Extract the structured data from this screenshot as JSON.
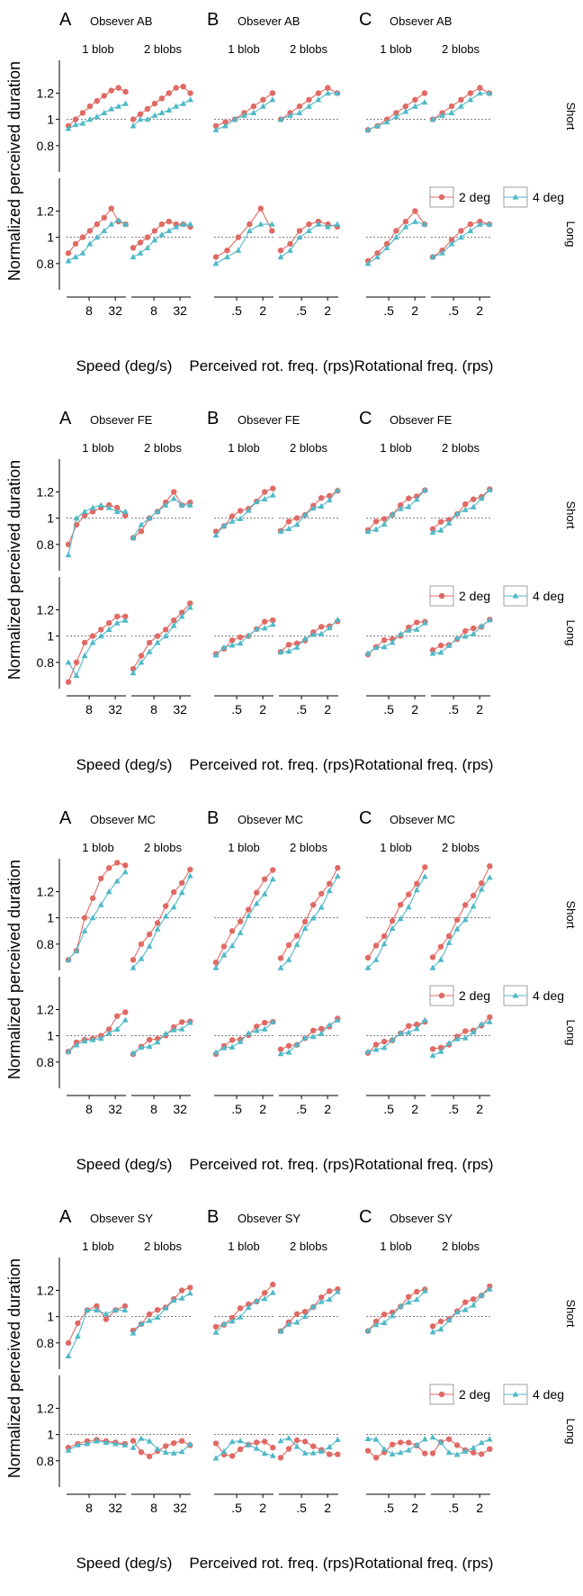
{
  "figure": {
    "ylabel": "Normalized perceived duration",
    "row_labels": [
      "Short",
      "Long"
    ],
    "sub_labels": [
      "1 blob",
      "2 blobs"
    ],
    "columns": [
      {
        "letter": "A",
        "xlabel": "Speed (deg/s)",
        "ticks": [
          "8",
          "32"
        ]
      },
      {
        "letter": "B",
        "xlabel": "Perceived rot. freq. (rps)",
        "ticks": [
          ".5",
          "2"
        ]
      },
      {
        "letter": "C",
        "xlabel": "Rotational freq. (rps)",
        "ticks": [
          ".5",
          "2"
        ]
      }
    ],
    "yticks": [
      "0.8",
      "1",
      "1.2"
    ],
    "legend": {
      "items": [
        "2 deg",
        "4 deg"
      ]
    },
    "colors": {
      "deg2": "#e06a64",
      "deg4": "#4fb9c8"
    }
  },
  "chart_data": [
    {
      "type": "line",
      "observer": "AB",
      "title": "Obsever AB",
      "x_speed": [
        2.8,
        4,
        5.7,
        8,
        11.3,
        16,
        22.6,
        32,
        45.3
      ],
      "x_rot": [
        0.18,
        0.25,
        0.35,
        0.5,
        0.71,
        1,
        1.41,
        2,
        2.83
      ],
      "series": [
        {
          "name": "2 deg",
          "column": "A",
          "row": "Short",
          "sub": "1 blob",
          "values": [
            0.95,
            1.0,
            1.05,
            1.1,
            1.14,
            1.18,
            1.22,
            1.24,
            1.21
          ]
        },
        {
          "name": "4 deg",
          "column": "A",
          "row": "Short",
          "sub": "1 blob",
          "values": [
            0.93,
            0.96,
            0.97,
            1.0,
            1.02,
            1.05,
            1.08,
            1.1,
            1.12
          ]
        },
        {
          "name": "2 deg",
          "column": "A",
          "row": "Short",
          "sub": "2 blobs",
          "values": [
            1.0,
            1.04,
            1.08,
            1.12,
            1.16,
            1.2,
            1.24,
            1.25,
            1.2
          ]
        },
        {
          "name": "4 deg",
          "column": "A",
          "row": "Short",
          "sub": "2 blobs",
          "values": [
            0.95,
            1.0,
            1.0,
            1.03,
            1.05,
            1.07,
            1.1,
            1.12,
            1.15
          ]
        },
        {
          "name": "2 deg",
          "column": "A",
          "row": "Long",
          "sub": "1 blob",
          "values": [
            0.88,
            0.95,
            1.0,
            1.05,
            1.1,
            1.15,
            1.22,
            1.12,
            1.1
          ]
        },
        {
          "name": "4 deg",
          "column": "A",
          "row": "Long",
          "sub": "1 blob",
          "values": [
            0.82,
            0.85,
            0.88,
            0.95,
            1.0,
            1.05,
            1.1,
            1.13,
            1.1
          ]
        },
        {
          "name": "2 deg",
          "column": "A",
          "row": "Long",
          "sub": "2 blobs",
          "values": [
            0.92,
            0.96,
            1.0,
            1.05,
            1.1,
            1.12,
            1.1,
            1.1,
            1.08
          ]
        },
        {
          "name": "4 deg",
          "column": "A",
          "row": "Long",
          "sub": "2 blobs",
          "values": [
            0.85,
            0.88,
            0.92,
            0.98,
            1.02,
            1.05,
            1.08,
            1.1,
            1.1
          ]
        },
        {
          "name": "2 deg",
          "column": "B",
          "row": "Short",
          "sub": "1 blob",
          "values": [
            0.95,
            0.98,
            1.0,
            1.05,
            1.1,
            1.15,
            1.2
          ]
        },
        {
          "name": "4 deg",
          "column": "B",
          "row": "Short",
          "sub": "1 blob",
          "values": [
            0.92,
            0.95,
            1.0,
            1.03,
            1.05,
            1.1,
            1.15
          ]
        },
        {
          "name": "2 deg",
          "column": "B",
          "row": "Short",
          "sub": "2 blobs",
          "values": [
            1.0,
            1.05,
            1.1,
            1.15,
            1.2,
            1.24,
            1.2
          ]
        },
        {
          "name": "4 deg",
          "column": "B",
          "row": "Short",
          "sub": "2 blobs",
          "values": [
            1.0,
            1.03,
            1.05,
            1.1,
            1.15,
            1.2,
            1.2
          ]
        },
        {
          "name": "2 deg",
          "column": "B",
          "row": "Long",
          "sub": "1 blob",
          "values": [
            0.85,
            0.9,
            1.0,
            1.1,
            1.22,
            1.05
          ]
        },
        {
          "name": "4 deg",
          "column": "B",
          "row": "Long",
          "sub": "1 blob",
          "values": [
            0.8,
            0.85,
            0.9,
            1.05,
            1.1,
            1.1
          ]
        },
        {
          "name": "2 deg",
          "column": "B",
          "row": "Long",
          "sub": "2 blobs",
          "values": [
            0.9,
            0.95,
            1.05,
            1.1,
            1.12,
            1.1,
            1.08
          ]
        },
        {
          "name": "4 deg",
          "column": "B",
          "row": "Long",
          "sub": "2 blobs",
          "values": [
            0.85,
            0.9,
            1.0,
            1.05,
            1.1,
            1.08,
            1.1
          ]
        },
        {
          "name": "2 deg",
          "column": "C",
          "row": "Short",
          "sub": "1 blob",
          "values": [
            0.92,
            0.95,
            1.0,
            1.05,
            1.1,
            1.15,
            1.2
          ]
        },
        {
          "name": "4 deg",
          "column": "C",
          "row": "Short",
          "sub": "1 blob",
          "values": [
            0.92,
            0.95,
            0.98,
            1.02,
            1.06,
            1.1,
            1.13
          ]
        },
        {
          "name": "2 deg",
          "column": "C",
          "row": "Short",
          "sub": "2 blobs",
          "values": [
            1.0,
            1.05,
            1.1,
            1.15,
            1.2,
            1.24,
            1.2
          ]
        },
        {
          "name": "4 deg",
          "column": "C",
          "row": "Short",
          "sub": "2 blobs",
          "values": [
            1.0,
            1.03,
            1.05,
            1.1,
            1.15,
            1.2,
            1.2
          ]
        },
        {
          "name": "2 deg",
          "column": "C",
          "row": "Long",
          "sub": "1 blob",
          "values": [
            0.82,
            0.88,
            0.95,
            1.05,
            1.12,
            1.2,
            1.1
          ]
        },
        {
          "name": "4 deg",
          "column": "C",
          "row": "Long",
          "sub": "1 blob",
          "values": [
            0.8,
            0.85,
            0.92,
            1.0,
            1.08,
            1.12,
            1.1
          ]
        },
        {
          "name": "2 deg",
          "column": "C",
          "row": "Long",
          "sub": "2 blobs",
          "values": [
            0.85,
            0.9,
            0.98,
            1.05,
            1.1,
            1.12,
            1.1
          ]
        },
        {
          "name": "4 deg",
          "column": "C",
          "row": "Long",
          "sub": "2 blobs",
          "values": [
            0.85,
            0.88,
            0.95,
            1.0,
            1.05,
            1.1,
            1.1
          ]
        }
      ]
    },
    {
      "type": "line",
      "observer": "FE",
      "title": "Obsever FE",
      "series": [
        {
          "name": "2 deg",
          "column": "A",
          "row": "Short",
          "sub": "1 blob",
          "values": [
            0.8,
            0.95,
            1.02,
            1.05,
            1.08,
            1.1,
            1.08,
            1.02
          ]
        },
        {
          "name": "4 deg",
          "column": "A",
          "row": "Short",
          "sub": "1 blob",
          "values": [
            0.72,
            1.0,
            1.05,
            1.08,
            1.1,
            1.08,
            1.05,
            1.05
          ]
        },
        {
          "name": "2 deg",
          "column": "A",
          "row": "Short",
          "sub": "2 blobs",
          "values": [
            0.85,
            0.9,
            1.0,
            1.05,
            1.12,
            1.2,
            1.1,
            1.12
          ]
        },
        {
          "name": "4 deg",
          "column": "A",
          "row": "Short",
          "sub": "2 blobs",
          "values": [
            0.85,
            0.95,
            1.0,
            1.05,
            1.1,
            1.15,
            1.1,
            1.1
          ]
        },
        {
          "name": "2 deg",
          "column": "A",
          "row": "Long",
          "sub": "1 blob",
          "values": [
            0.65,
            0.8,
            0.95,
            1.0,
            1.05,
            1.1,
            1.15,
            1.15
          ]
        },
        {
          "name": "4 deg",
          "column": "A",
          "row": "Long",
          "sub": "1 blob",
          "values": [
            0.8,
            0.7,
            0.85,
            0.95,
            1.0,
            1.05,
            1.1,
            1.12
          ]
        },
        {
          "name": "2 deg",
          "column": "A",
          "row": "Long",
          "sub": "2 blobs",
          "values": [
            0.75,
            0.85,
            0.95,
            1.0,
            1.05,
            1.12,
            1.18,
            1.25
          ]
        },
        {
          "name": "4 deg",
          "column": "A",
          "row": "Long",
          "sub": "2 blobs",
          "values": [
            0.72,
            0.8,
            0.88,
            0.95,
            1.0,
            1.08,
            1.15,
            1.22
          ]
        }
      ]
    },
    {
      "type": "line",
      "observer": "MC",
      "title": "Obsever MC",
      "series": [
        {
          "name": "2 deg",
          "column": "A",
          "row": "Short",
          "sub": "1 blob",
          "values": [
            0.68,
            0.75,
            1.0,
            1.15,
            1.3,
            1.38,
            1.42,
            1.4
          ]
        },
        {
          "name": "4 deg",
          "column": "A",
          "row": "Short",
          "sub": "1 blob",
          "values": [
            0.68,
            0.75,
            0.9,
            1.0,
            1.1,
            1.2,
            1.28,
            1.35
          ]
        },
        {
          "name": "2 deg",
          "column": "A",
          "row": "Long",
          "sub": "1 blob",
          "values": [
            0.88,
            0.95,
            0.97,
            0.98,
            1.0,
            1.05,
            1.15,
            1.18
          ]
        },
        {
          "name": "4 deg",
          "column": "A",
          "row": "Long",
          "sub": "1 blob",
          "values": [
            0.88,
            0.93,
            0.96,
            0.97,
            0.98,
            1.02,
            1.05,
            1.12
          ]
        }
      ]
    },
    {
      "type": "line",
      "observer": "SY",
      "title": "Obsever SY",
      "series": [
        {
          "name": "2 deg",
          "column": "A",
          "row": "Short",
          "sub": "1 blob",
          "values": [
            0.8,
            0.95,
            1.05,
            1.08,
            0.98,
            1.05,
            1.08
          ]
        },
        {
          "name": "4 deg",
          "column": "A",
          "row": "Short",
          "sub": "1 blob",
          "values": [
            0.7,
            0.85,
            1.05,
            1.05,
            1.02,
            1.05,
            1.05
          ]
        },
        {
          "name": "2 deg",
          "column": "A",
          "row": "Long",
          "sub": "1 blob",
          "values": [
            0.9,
            0.93,
            0.95,
            0.96,
            0.95,
            0.94,
            0.93
          ]
        },
        {
          "name": "4 deg",
          "column": "A",
          "row": "Long",
          "sub": "1 blob",
          "values": [
            0.88,
            0.92,
            0.93,
            0.95,
            0.94,
            0.93,
            0.92
          ]
        }
      ]
    }
  ]
}
